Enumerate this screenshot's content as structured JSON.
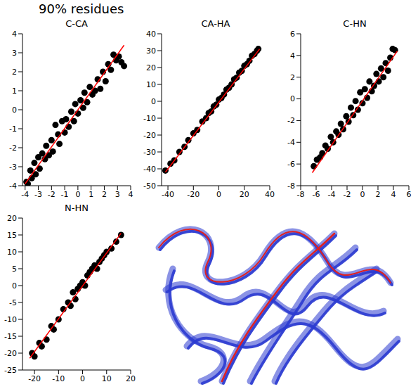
{
  "title": "90% residues",
  "chart_data": [
    {
      "type": "scatter",
      "title": "C-CA",
      "color": "#000000",
      "x": [
        -3.9,
        -3.8,
        -3.6,
        -3.5,
        -3.3,
        -3.2,
        -3.0,
        -2.9,
        -2.7,
        -2.5,
        -2.4,
        -2.2,
        -2.0,
        -1.9,
        -1.7,
        -1.5,
        -1.4,
        -1.2,
        -1.0,
        -0.9,
        -0.7,
        -0.5,
        -0.3,
        -0.2,
        0.0,
        0.2,
        0.4,
        0.5,
        0.7,
        0.9,
        1.1,
        1.3,
        1.5,
        1.7,
        1.9,
        2.1,
        2.3,
        2.5,
        2.7,
        2.9,
        3.1,
        3.3,
        3.5
      ],
      "values": [
        -3.8,
        -3.9,
        -3.2,
        -3.6,
        -2.8,
        -3.4,
        -2.5,
        -3.1,
        -2.3,
        -2.6,
        -1.9,
        -2.4,
        -1.6,
        -2.2,
        -0.8,
        -1.3,
        -1.8,
        -0.6,
        -1.2,
        -0.5,
        -0.9,
        -0.1,
        -0.6,
        0.3,
        -0.2,
        0.5,
        0.1,
        0.9,
        0.4,
        1.2,
        0.8,
        1.0,
        1.6,
        1.1,
        2.0,
        1.5,
        2.4,
        2.1,
        2.9,
        2.6,
        2.8,
        2.5,
        2.3
      ],
      "fit": {
        "x": [
          -4,
          3.5
        ],
        "y": [
          -3.9,
          3.4
        ],
        "color": "#ff0000"
      },
      "xlim": [
        -4.2,
        4
      ],
      "xticks": [
        -4,
        -3,
        -2,
        -1,
        0,
        1,
        2,
        3,
        4
      ],
      "ylim": [
        -4,
        4
      ],
      "yticks": [
        -4,
        -3,
        -2,
        -1,
        0,
        1,
        2,
        3,
        4
      ]
    },
    {
      "type": "scatter",
      "title": "CA-HA",
      "color": "#000000",
      "x": [
        -42,
        -38,
        -35,
        -31,
        -27,
        -24,
        -20,
        -17,
        -13,
        -10,
        -8,
        -6,
        -4,
        -2,
        0,
        2,
        4,
        6,
        8,
        10,
        12,
        14,
        16,
        18,
        20,
        22,
        24,
        26,
        28,
        30,
        31
      ],
      "values": [
        -41,
        -37,
        -35,
        -30,
        -27,
        -23,
        -19,
        -17,
        -12,
        -10,
        -7,
        -6,
        -3,
        -2,
        1,
        2,
        4,
        7,
        8,
        10,
        13,
        14,
        17,
        18,
        21,
        22,
        24,
        27,
        28,
        30,
        31
      ],
      "fit": {
        "x": [
          -42,
          32
        ],
        "y": [
          -42,
          31
        ],
        "color": "#ff0000"
      },
      "xlim": [
        -45,
        40
      ],
      "xticks": [
        -40,
        -20,
        0,
        20,
        40
      ],
      "ylim": [
        -50,
        40
      ],
      "yticks": [
        -50,
        -40,
        -30,
        -20,
        -10,
        0,
        10,
        20,
        30,
        40
      ]
    },
    {
      "type": "scatter",
      "title": "C-HN",
      "color": "#000000",
      "x": [
        -6.3,
        -5.9,
        -5.5,
        -5.2,
        -4.8,
        -4.5,
        -4.1,
        -3.8,
        -3.4,
        -3.1,
        -2.8,
        -2.5,
        -2.1,
        -1.8,
        -1.5,
        -1.2,
        -0.9,
        -0.6,
        -0.3,
        0.0,
        0.3,
        0.6,
        0.9,
        1.2,
        1.5,
        1.8,
        2.1,
        2.4,
        2.7,
        3.0,
        3.3,
        3.6,
        3.9,
        4.2
      ],
      "values": [
        -6.2,
        -5.6,
        -5.4,
        -5.0,
        -4.3,
        -4.6,
        -3.5,
        -4.0,
        -3.0,
        -3.3,
        -2.3,
        -2.8,
        -1.6,
        -2.1,
        -0.8,
        -1.5,
        -0.2,
        -1.0,
        0.6,
        -0.4,
        0.9,
        0.1,
        1.6,
        0.7,
        1.2,
        2.3,
        1.6,
        2.8,
        2.0,
        3.3,
        2.6,
        3.8,
        4.6,
        4.5
      ],
      "fit": {
        "x": [
          -6.5,
          4.5
        ],
        "y": [
          -6.8,
          4.4
        ],
        "color": "#ff0000"
      },
      "xlim": [
        -8,
        6
      ],
      "xticks": [
        -8,
        -6,
        -4,
        -2,
        0,
        2,
        4,
        6
      ],
      "ylim": [
        -8,
        6
      ],
      "yticks": [
        -8,
        -6,
        -4,
        -2,
        0,
        2,
        4,
        6
      ]
    },
    {
      "type": "scatter",
      "title": "N-HN",
      "color": "#000000",
      "x": [
        -21,
        -20,
        -18,
        -17,
        -15,
        -13,
        -12,
        -10,
        -8,
        -6,
        -5,
        -4,
        -3,
        -2,
        -1,
        0,
        1,
        2,
        3,
        4,
        5,
        6,
        7,
        8,
        9,
        10,
        12,
        14,
        16
      ],
      "values": [
        -20,
        -21,
        -17,
        -18,
        -16,
        -12,
        -13,
        -10,
        -7,
        -5,
        -6,
        -2,
        -4,
        -1,
        0,
        1,
        0,
        3,
        4,
        5,
        6,
        5,
        7,
        8,
        9,
        10,
        11,
        13,
        15
      ],
      "fit": {
        "x": [
          -22,
          16
        ],
        "y": [
          -21.5,
          15.5
        ],
        "color": "#ff0000"
      },
      "xlim": [
        -25,
        20
      ],
      "xticks": [
        -20,
        -10,
        0,
        10,
        20
      ],
      "ylim": [
        -25,
        20
      ],
      "yticks": [
        -25,
        -20,
        -15,
        -10,
        -5,
        0,
        5,
        10,
        15,
        20
      ]
    }
  ]
}
